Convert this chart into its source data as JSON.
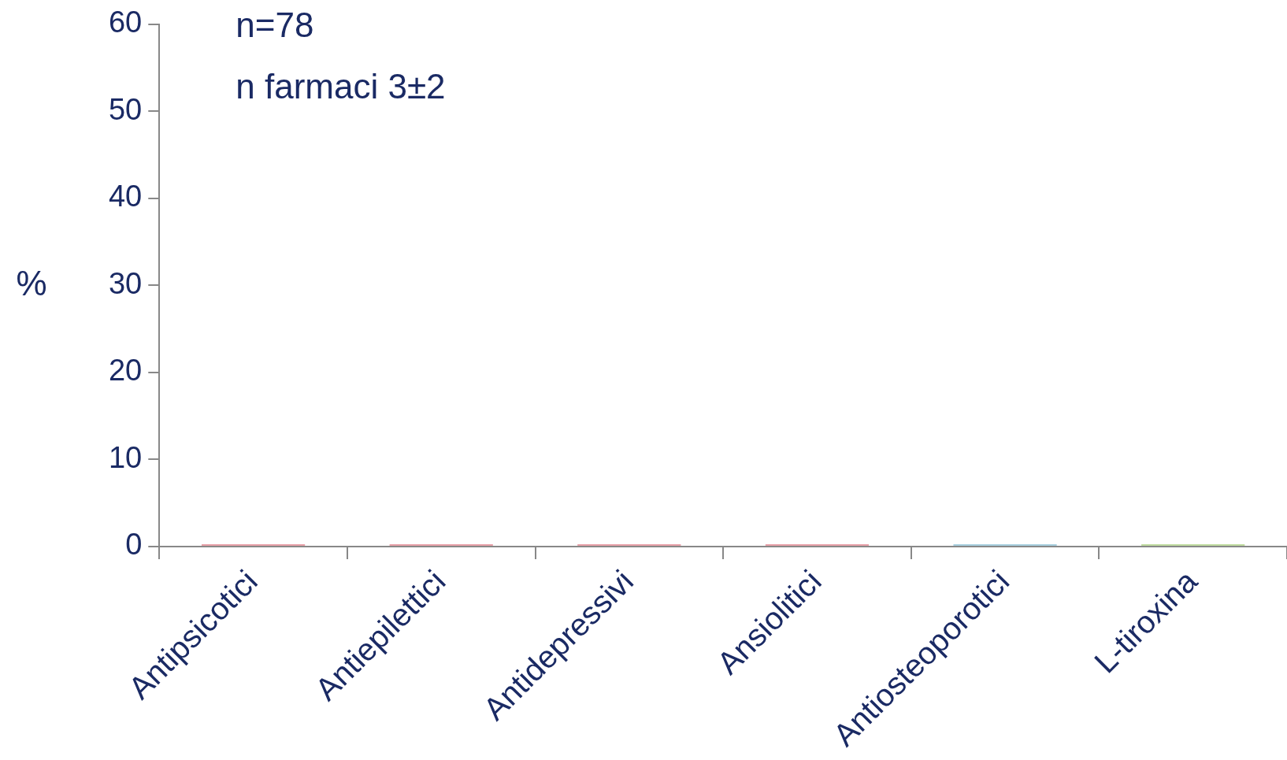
{
  "chart_data": {
    "type": "bar",
    "ylabel": "%",
    "annotations": [
      "n=78",
      "n farmaci 3±2"
    ],
    "categories": [
      "Antipsicotici",
      "Antiepilettici",
      "Antidepressivi",
      "Ansiolitici",
      "Antiosteoporotici",
      "L-tiroxina"
    ],
    "values": [
      0,
      0,
      0,
      0,
      0,
      0
    ],
    "colors": [
      "#e8a0a8",
      "#e8a0a8",
      "#e8a0a8",
      "#e8a0a8",
      "#a8d0e0",
      "#c0dca0"
    ],
    "ylim": [
      0,
      60
    ],
    "yticks": [
      0,
      10,
      20,
      30,
      40,
      50,
      60
    ],
    "grid": false,
    "legend": false
  }
}
